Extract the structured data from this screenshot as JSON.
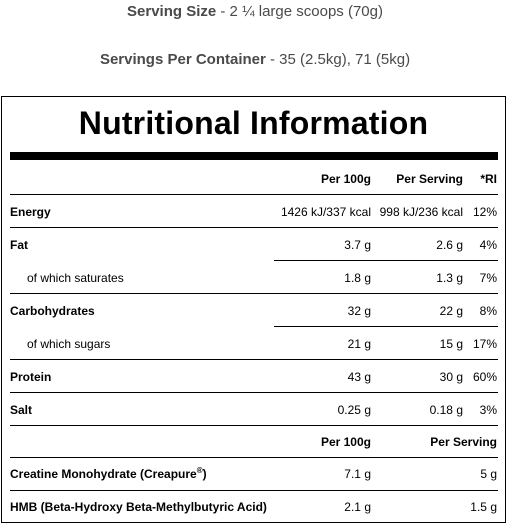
{
  "header": {
    "serving_size_label": "Serving Size",
    "serving_size_value": "- 2 ¼ large scoops (70g)",
    "servings_label": "Servings Per Container",
    "servings_value": "- 35 (2.5kg), 71 (5kg)"
  },
  "panel": {
    "title": "Nutritional Information",
    "columns": {
      "per100": "Per 100g",
      "perServing": "Per Serving",
      "ri": "*RI"
    },
    "rows": [
      {
        "label": "Energy",
        "per100": "1426 kJ/337 kcal",
        "perServing": "998 kJ/236 kcal",
        "ri": "12%"
      },
      {
        "label": "Fat",
        "per100": "3.7 g",
        "perServing": "2.6 g",
        "ri": "4%"
      },
      {
        "label": "of which saturates",
        "per100": "1.8 g",
        "perServing": "1.3 g",
        "ri": "7%"
      },
      {
        "label": "Carbohydrates",
        "per100": "32 g",
        "perServing": "22 g",
        "ri": "8%"
      },
      {
        "label": "of which sugars",
        "per100": "21 g",
        "perServing": "15 g",
        "ri": "17%"
      },
      {
        "label": "Protein",
        "per100": "43 g",
        "perServing": "30 g",
        "ri": "60%"
      },
      {
        "label": "Salt",
        "per100": "0.25 g",
        "perServing": "0.18 g",
        "ri": "3%"
      }
    ],
    "columns2": {
      "per100": "Per 100g",
      "perServing": "Per Serving"
    },
    "rows2": [
      {
        "label": "Creatine Monohydrate (Creapure",
        "mark": "®",
        "label_end": ")",
        "per100": "7.1 g",
        "perServing": "5 g"
      },
      {
        "label": "HMB (Beta-Hydroxy Beta-Methylbutyric Acid)",
        "per100": "2.1 g",
        "perServing": "1.5 g"
      }
    ]
  }
}
